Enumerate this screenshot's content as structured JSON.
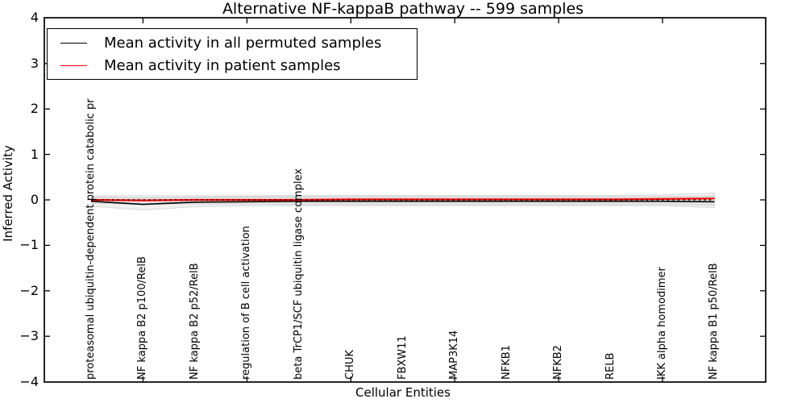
{
  "figure": {
    "title": "Alternative NF-kappaB pathway -- 599 samples",
    "xlabel": "Cellular Entities",
    "ylabel": "Inferred Activity"
  },
  "legend": {
    "position": "upper left",
    "items": [
      {
        "label": "Mean activity in all permuted samples",
        "color": "#000000"
      },
      {
        "label": "Mean activity in patient samples",
        "color": "#ff0000"
      }
    ]
  },
  "chart_data": {
    "type": "line",
    "title": "Alternative NF-kappaB pathway -- 599 samples",
    "xlabel": "Cellular Entities",
    "ylabel": "Inferred Activity",
    "ylim": [
      -4,
      4
    ],
    "yticks": [
      4,
      3,
      2,
      1,
      0,
      -1,
      -2,
      -3,
      -4
    ],
    "xtick_positions": [
      1,
      3,
      5,
      7,
      9,
      11
    ],
    "grid": false,
    "legend_position": "upper left",
    "categories": [
      "proteasomal ubiquitin-dependent protein catabolic pr",
      "NF kappa B2 p100/RelB",
      "NF kappa B2 p52/RelB",
      "regulation of B cell activation",
      "beta TrCP1/SCF ubiquitin ligase complex",
      "CHUK",
      "FBXW11",
      "MAP3K14",
      "NFKB1",
      "NFKB2",
      "RELB",
      "IKK alpha homodimer",
      "NF kappa B1 p50/RelB"
    ],
    "series": [
      {
        "name": "Mean activity in all permuted samples",
        "color": "#000000",
        "style": "solid",
        "width": 1.6,
        "values": [
          -0.03,
          -0.1,
          -0.05,
          -0.04,
          -0.03,
          -0.03,
          -0.03,
          -0.03,
          -0.03,
          -0.03,
          -0.03,
          -0.03,
          -0.04
        ]
      },
      {
        "name": "Mean activity in patient samples",
        "color": "#ff0000",
        "style": "solid",
        "width": 2.2,
        "values": [
          0.0,
          -0.01,
          0.0,
          0.0,
          0.0,
          0.01,
          0.01,
          0.01,
          0.01,
          0.01,
          0.01,
          0.02,
          0.03
        ]
      },
      {
        "name": "zero-reference-line",
        "color": "#000000",
        "style": "dotted",
        "width": 1.5,
        "values": [
          0,
          0,
          0,
          0,
          0,
          0,
          0,
          0,
          0,
          0,
          0,
          0,
          0
        ]
      }
    ],
    "bands": [
      {
        "name": "permuted-samples-spread",
        "fill": "rgba(0,0,0,0.055)",
        "stroke": "#d9d9d9",
        "upper": [
          0.06,
          0.05,
          0.06,
          0.07,
          0.07,
          0.07,
          0.07,
          0.07,
          0.07,
          0.07,
          0.07,
          0.07,
          0.08
        ],
        "lower": [
          -0.14,
          -0.22,
          -0.15,
          -0.13,
          -0.13,
          -0.13,
          -0.13,
          -0.13,
          -0.13,
          -0.13,
          -0.13,
          -0.13,
          -0.17
        ]
      },
      {
        "name": "patient-samples-spread",
        "fill": "rgba(0,0,0,0.055)",
        "stroke": "#d9d9d9",
        "upper": [
          0.09,
          0.09,
          0.09,
          0.09,
          0.1,
          0.1,
          0.1,
          0.1,
          0.1,
          0.1,
          0.1,
          0.11,
          0.15
        ],
        "lower": [
          -0.08,
          -0.09,
          -0.09,
          -0.09,
          -0.1,
          -0.1,
          -0.1,
          -0.1,
          -0.1,
          -0.1,
          -0.1,
          -0.1,
          -0.12
        ]
      }
    ]
  }
}
